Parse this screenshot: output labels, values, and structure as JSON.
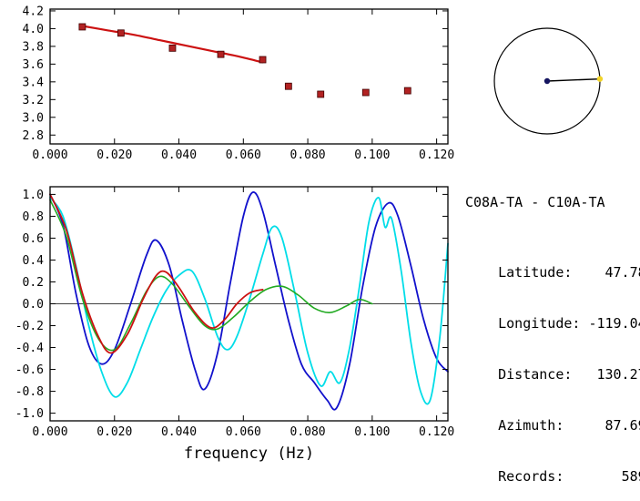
{
  "colors": {
    "axis": "#000000",
    "scatter_marker": "#b22222",
    "fit_line": "#cc1111",
    "waveform_blue": "#1111cc",
    "waveform_cyan": "#00dde8",
    "waveform_green": "#22aa22",
    "waveform_red": "#cc1111",
    "azimuth_center_dot": "#151560",
    "azimuth_station_marker": "#f2d428"
  },
  "chart_data": [
    {
      "id": "dispersion",
      "type": "scatter",
      "title": "",
      "xlabel": "",
      "ylabel": "",
      "xlim": [
        0,
        0.1235
      ],
      "ylim": [
        2.7,
        4.22
      ],
      "grid": false,
      "legend": "none",
      "xtick_values": [
        0,
        0.02,
        0.04,
        0.06,
        0.08,
        0.1,
        0.12
      ],
      "xtick_labels": [
        "0.000",
        "0.020",
        "0.040",
        "0.060",
        "0.080",
        "0.100",
        "0.120"
      ],
      "ytick_values": [
        4.2,
        4.0,
        3.8,
        3.6,
        3.4,
        3.2,
        3.0,
        2.8
      ],
      "ytick_labels": [
        "4.2",
        "4.0",
        "3.8",
        "3.6",
        "3.4",
        "3.2",
        "3.0",
        "2.8"
      ],
      "zero_line": false,
      "series": [
        {
          "name": "fit-curve",
          "type": "line",
          "color": "#cc1111",
          "width": 2.2,
          "points": [
            [
              0.01,
              4.03
            ],
            [
              0.018,
              3.98
            ],
            [
              0.026,
              3.93
            ],
            [
              0.034,
              3.87
            ],
            [
              0.042,
              3.81
            ],
            [
              0.05,
              3.75
            ],
            [
              0.058,
              3.69
            ],
            [
              0.066,
              3.62
            ]
          ]
        },
        {
          "name": "measured-points",
          "type": "scatter",
          "marker": "square",
          "color": "#b22222",
          "points": [
            [
              0.01,
              4.02
            ],
            [
              0.022,
              3.95
            ],
            [
              0.038,
              3.78
            ],
            [
              0.053,
              3.71
            ],
            [
              0.066,
              3.65
            ],
            [
              0.074,
              3.35
            ],
            [
              0.084,
              3.26
            ],
            [
              0.098,
              3.28
            ],
            [
              0.111,
              3.3
            ]
          ]
        }
      ]
    },
    {
      "id": "waveforms",
      "type": "line",
      "title": "",
      "xlabel": "frequency (Hz)",
      "ylabel": "",
      "xlim": [
        0,
        0.1235
      ],
      "ylim": [
        -1.07,
        1.07
      ],
      "grid": false,
      "legend": "none",
      "xtick_values": [
        0,
        0.02,
        0.04,
        0.06,
        0.08,
        0.1,
        0.12
      ],
      "xtick_labels": [
        "0.000",
        "0.020",
        "0.040",
        "0.060",
        "0.080",
        "0.100",
        "0.120"
      ],
      "ytick_values": [
        1.0,
        0.8,
        0.6,
        0.4,
        0.2,
        0.0,
        -0.2,
        -0.4,
        -0.6,
        -0.8,
        -1.0
      ],
      "ytick_labels": [
        "1.0",
        "0.8",
        "0.6",
        "0.4",
        "0.2",
        "0.0",
        "-0.2",
        "-0.4",
        "-0.6",
        "-0.8",
        "-1.0"
      ],
      "zero_line": true,
      "series": [
        {
          "name": "curve-blue",
          "type": "line",
          "color": "#1111cc",
          "width": 1.8,
          "points": [
            [
              0,
              1.0
            ],
            [
              0.004,
              0.72
            ],
            [
              0.008,
              0.1
            ],
            [
              0.012,
              -0.38
            ],
            [
              0.016,
              -0.55
            ],
            [
              0.02,
              -0.42
            ],
            [
              0.025,
              0.0
            ],
            [
              0.03,
              0.45
            ],
            [
              0.033,
              0.58
            ],
            [
              0.037,
              0.35
            ],
            [
              0.041,
              -0.15
            ],
            [
              0.045,
              -0.6
            ],
            [
              0.048,
              -0.78
            ],
            [
              0.052,
              -0.45
            ],
            [
              0.056,
              0.2
            ],
            [
              0.06,
              0.8
            ],
            [
              0.063,
              1.02
            ],
            [
              0.066,
              0.85
            ],
            [
              0.07,
              0.35
            ],
            [
              0.074,
              -0.15
            ],
            [
              0.078,
              -0.55
            ],
            [
              0.082,
              -0.72
            ],
            [
              0.086,
              -0.88
            ],
            [
              0.089,
              -0.95
            ],
            [
              0.093,
              -0.55
            ],
            [
              0.097,
              0.15
            ],
            [
              0.101,
              0.7
            ],
            [
              0.105,
              0.92
            ],
            [
              0.108,
              0.8
            ],
            [
              0.112,
              0.35
            ],
            [
              0.116,
              -0.15
            ],
            [
              0.12,
              -0.5
            ],
            [
              0.1235,
              -0.62
            ]
          ]
        },
        {
          "name": "curve-cyan",
          "type": "line",
          "color": "#00dde8",
          "width": 1.8,
          "points": [
            [
              0,
              0.97
            ],
            [
              0.004,
              0.8
            ],
            [
              0.008,
              0.35
            ],
            [
              0.012,
              -0.2
            ],
            [
              0.016,
              -0.62
            ],
            [
              0.02,
              -0.85
            ],
            [
              0.024,
              -0.72
            ],
            [
              0.028,
              -0.42
            ],
            [
              0.032,
              -0.12
            ],
            [
              0.036,
              0.12
            ],
            [
              0.04,
              0.26
            ],
            [
              0.044,
              0.3
            ],
            [
              0.048,
              0.05
            ],
            [
              0.052,
              -0.3
            ],
            [
              0.055,
              -0.42
            ],
            [
              0.058,
              -0.3
            ],
            [
              0.062,
              0.05
            ],
            [
              0.066,
              0.45
            ],
            [
              0.069,
              0.7
            ],
            [
              0.072,
              0.6
            ],
            [
              0.076,
              0.1
            ],
            [
              0.08,
              -0.45
            ],
            [
              0.084,
              -0.75
            ],
            [
              0.087,
              -0.62
            ],
            [
              0.09,
              -0.72
            ],
            [
              0.093,
              -0.4
            ],
            [
              0.096,
              0.15
            ],
            [
              0.099,
              0.75
            ],
            [
              0.102,
              0.97
            ],
            [
              0.104,
              0.7
            ],
            [
              0.106,
              0.78
            ],
            [
              0.109,
              0.3
            ],
            [
              0.112,
              -0.35
            ],
            [
              0.115,
              -0.8
            ],
            [
              0.118,
              -0.88
            ],
            [
              0.121,
              -0.3
            ],
            [
              0.1235,
              0.55
            ]
          ]
        },
        {
          "name": "curve-green",
          "type": "line",
          "color": "#22aa22",
          "width": 1.6,
          "points": [
            [
              0,
              0.95
            ],
            [
              0.005,
              0.62
            ],
            [
              0.01,
              0.05
            ],
            [
              0.015,
              -0.32
            ],
            [
              0.02,
              -0.42
            ],
            [
              0.025,
              -0.18
            ],
            [
              0.03,
              0.12
            ],
            [
              0.034,
              0.25
            ],
            [
              0.038,
              0.18
            ],
            [
              0.043,
              -0.02
            ],
            [
              0.048,
              -0.2
            ],
            [
              0.052,
              -0.23
            ],
            [
              0.057,
              -0.12
            ],
            [
              0.062,
              0.02
            ],
            [
              0.067,
              0.13
            ],
            [
              0.072,
              0.16
            ],
            [
              0.077,
              0.08
            ],
            [
              0.082,
              -0.04
            ],
            [
              0.087,
              -0.08
            ],
            [
              0.092,
              -0.02
            ],
            [
              0.096,
              0.04
            ],
            [
              0.1,
              0.0
            ]
          ]
        },
        {
          "name": "curve-red",
          "type": "line",
          "color": "#cc1111",
          "width": 1.8,
          "points": [
            [
              0,
              1.0
            ],
            [
              0.005,
              0.68
            ],
            [
              0.01,
              0.1
            ],
            [
              0.015,
              -0.3
            ],
            [
              0.019,
              -0.45
            ],
            [
              0.024,
              -0.28
            ],
            [
              0.029,
              0.05
            ],
            [
              0.033,
              0.26
            ],
            [
              0.036,
              0.29
            ],
            [
              0.04,
              0.15
            ],
            [
              0.045,
              -0.08
            ],
            [
              0.05,
              -0.22
            ],
            [
              0.054,
              -0.15
            ],
            [
              0.058,
              0.0
            ],
            [
              0.062,
              0.1
            ],
            [
              0.066,
              0.13
            ]
          ]
        }
      ]
    }
  ],
  "azimuth_plot": {
    "azimuth_deg": 87.69,
    "center_color": "#151560",
    "marker_color": "#f2d428"
  },
  "station_info": {
    "pair": "C08A-TA - C10A-TA",
    "rows": [
      {
        "label": "Latitude:",
        "value": "47.78"
      },
      {
        "label": "Longitude:",
        "value": "-119.04"
      },
      {
        "label": "Distance:",
        "value": "130.27"
      },
      {
        "label": "Azimuth:",
        "value": "87.69"
      },
      {
        "label": "Records:",
        "value": "589"
      }
    ]
  }
}
